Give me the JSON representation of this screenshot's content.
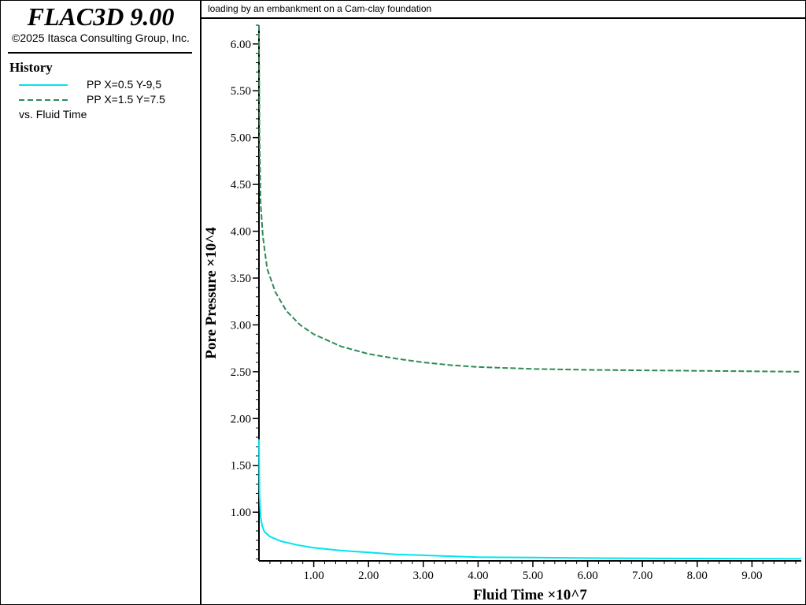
{
  "app": {
    "title": "FLAC3D 9.00",
    "copyright": "©2025 Itasca Consulting Group, Inc."
  },
  "legend": {
    "heading": "History",
    "items": [
      {
        "label": "PP X=0.5 Y-9,5",
        "color": "#00e5ee",
        "style": "solid"
      },
      {
        "label": "PP X=1.5 Y=7.5",
        "color": "#2e8b57",
        "style": "dashed"
      }
    ],
    "vs_label": "vs. Fluid Time"
  },
  "plot": {
    "title": "loading by an embankment on a Cam-clay foundation"
  },
  "chart_data": {
    "type": "line",
    "title": "loading by an embankment on a Cam-clay foundation",
    "xlabel": "Fluid Time ×10^7",
    "ylabel": "Pore Pressure ×10^4",
    "xlim": [
      0.0,
      9.9
    ],
    "ylim": [
      0.48,
      6.2
    ],
    "x_ticks": [
      1.0,
      2.0,
      3.0,
      4.0,
      5.0,
      6.0,
      7.0,
      8.0,
      9.0
    ],
    "x_tick_labels": [
      "1.00",
      "2.00",
      "3.00",
      "4.00",
      "5.00",
      "6.00",
      "7.00",
      "8.00",
      "9.00"
    ],
    "y_ticks": [
      1.0,
      1.5,
      2.0,
      2.5,
      3.0,
      3.5,
      4.0,
      4.5,
      5.0,
      5.5,
      6.0
    ],
    "y_tick_labels": [
      "1.00",
      "1.50",
      "2.00",
      "2.50",
      "3.00",
      "3.50",
      "4.00",
      "4.50",
      "5.00",
      "5.50",
      "6.00"
    ],
    "grid": false,
    "series": [
      {
        "name": "PP X=0.5 Y-9,5",
        "color": "#00e5ee",
        "dash": "solid",
        "points": [
          [
            0.0,
            1.78
          ],
          [
            0.01,
            1.2
          ],
          [
            0.03,
            0.95
          ],
          [
            0.06,
            0.85
          ],
          [
            0.1,
            0.79
          ],
          [
            0.2,
            0.74
          ],
          [
            0.4,
            0.69
          ],
          [
            0.7,
            0.65
          ],
          [
            1.0,
            0.62
          ],
          [
            1.5,
            0.59
          ],
          [
            2.0,
            0.57
          ],
          [
            2.5,
            0.55
          ],
          [
            3.0,
            0.54
          ],
          [
            3.5,
            0.53
          ],
          [
            4.0,
            0.52
          ],
          [
            5.0,
            0.515
          ],
          [
            6.0,
            0.51
          ],
          [
            7.0,
            0.507
          ],
          [
            8.0,
            0.505
          ],
          [
            9.0,
            0.503
          ],
          [
            9.9,
            0.502
          ]
        ]
      },
      {
        "name": "PP X=1.5 Y=7.5",
        "color": "#2e8b57",
        "dash": "dashed",
        "points": [
          [
            0.0,
            6.2
          ],
          [
            0.01,
            5.0
          ],
          [
            0.03,
            4.3
          ],
          [
            0.07,
            3.95
          ],
          [
            0.15,
            3.6
          ],
          [
            0.3,
            3.35
          ],
          [
            0.5,
            3.15
          ],
          [
            0.75,
            3.0
          ],
          [
            1.0,
            2.9
          ],
          [
            1.5,
            2.77
          ],
          [
            2.0,
            2.69
          ],
          [
            2.5,
            2.64
          ],
          [
            3.0,
            2.6
          ],
          [
            3.5,
            2.57
          ],
          [
            4.0,
            2.55
          ],
          [
            5.0,
            2.53
          ],
          [
            6.0,
            2.52
          ],
          [
            7.0,
            2.515
          ],
          [
            8.0,
            2.51
          ],
          [
            9.0,
            2.505
          ],
          [
            9.9,
            2.5
          ]
        ]
      }
    ]
  }
}
